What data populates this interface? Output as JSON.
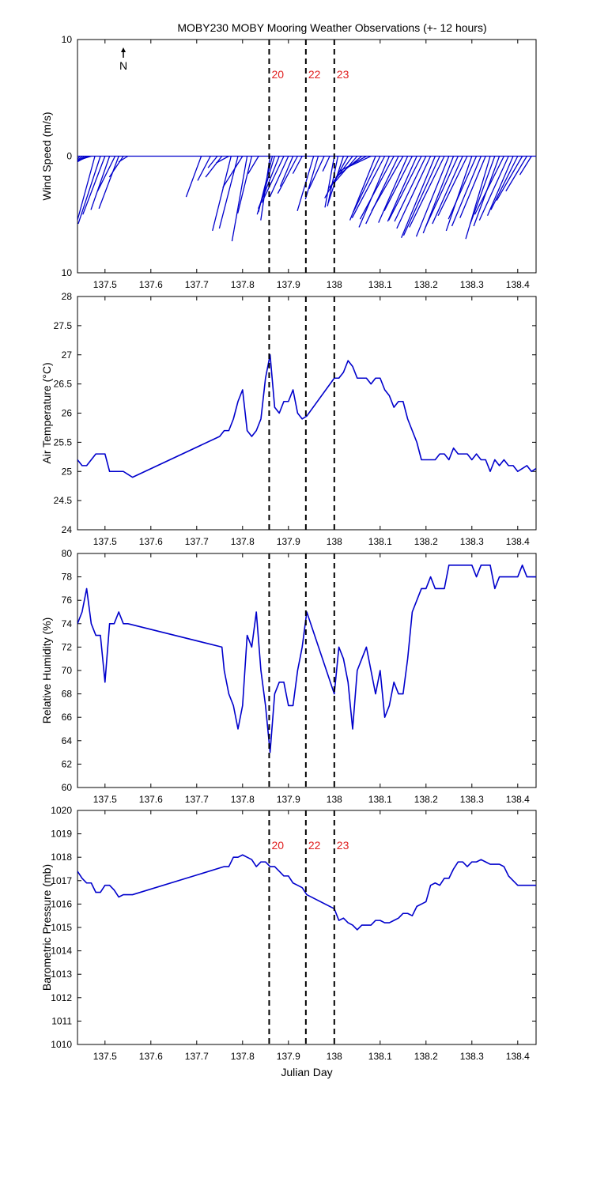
{
  "title": "MOBY230 MOBY Mooring Weather Observations (+- 12 hours)",
  "colors": {
    "line": "#0000cc",
    "marker": "#e02020",
    "axis": "#000000"
  },
  "x_ticks": [
    137.5,
    137.6,
    137.7,
    137.8,
    137.9,
    138,
    138.1,
    138.2,
    138.3,
    138.4
  ],
  "x_tick_labels": [
    "137.5",
    "137.6",
    "137.7",
    "137.8",
    "137.9",
    "138",
    "138.1",
    "138.2",
    "138.3",
    "138.4"
  ],
  "xlim": [
    137.44,
    138.44
  ],
  "markers": [
    {
      "x": 137.858,
      "label": "20"
    },
    {
      "x": 137.938,
      "label": "22"
    },
    {
      "x": 138.0,
      "label": "23"
    }
  ],
  "chart_data": [
    {
      "type": "line",
      "subtype": "wind-stick",
      "ylabel": "Wind Speed (m/s)",
      "ylim": [
        -10,
        10
      ],
      "y_ticks": [
        10,
        0,
        -10
      ],
      "y_tick_labels": [
        "10",
        "0",
        "10"
      ],
      "north_arrow_label": "N",
      "show_markers_labels": true,
      "sticks": [
        {
          "x": 137.445,
          "u": 2.3,
          "v": -3.3
        },
        {
          "x": 137.45,
          "u": 2.6,
          "v": -2.6
        },
        {
          "x": 137.455,
          "u": 2.5,
          "v": -2.0
        },
        {
          "x": 137.46,
          "u": 2.4,
          "v": -1.5
        },
        {
          "x": 137.465,
          "u": 2.2,
          "v": -1.0
        },
        {
          "x": 137.47,
          "u": 1.9,
          "v": -0.6
        },
        {
          "x": 137.478,
          "u": 1.5,
          "v": -5.5
        },
        {
          "x": 137.49,
          "u": 1.9,
          "v": -5.8
        },
        {
          "x": 137.5,
          "u": 1.9,
          "v": -5.0
        },
        {
          "x": 137.51,
          "u": 1.6,
          "v": -4.6
        },
        {
          "x": 137.522,
          "u": 1.5,
          "v": -3.0
        },
        {
          "x": 137.53,
          "u": 1.7,
          "v": -4.5
        },
        {
          "x": 137.54,
          "u": 1.2,
          "v": -1.8
        },
        {
          "x": 137.55,
          "u": 0.8,
          "v": -0.5
        },
        {
          "x": 137.71,
          "u": 1.3,
          "v": -3.5
        },
        {
          "x": 137.73,
          "u": 1.1,
          "v": -2.1
        },
        {
          "x": 137.745,
          "u": 0.8,
          "v": -1.0
        },
        {
          "x": 137.755,
          "u": 1.4,
          "v": -1.8
        },
        {
          "x": 137.77,
          "u": 1.1,
          "v": -0.6
        },
        {
          "x": 137.775,
          "u": 1.6,
          "v": -6.4
        },
        {
          "x": 137.79,
          "u": 1.6,
          "v": -6.2
        },
        {
          "x": 137.8,
          "u": 1.7,
          "v": -2.7
        },
        {
          "x": 137.81,
          "u": 1.3,
          "v": -7.3
        },
        {
          "x": 137.82,
          "u": 1.2,
          "v": -4.9
        },
        {
          "x": 137.835,
          "u": 0.9,
          "v": -1.5
        },
        {
          "x": 137.86,
          "u": 0.8,
          "v": -5.5
        },
        {
          "x": 137.865,
          "u": 1.2,
          "v": -4.8
        },
        {
          "x": 137.87,
          "u": 1.5,
          "v": -5.0
        },
        {
          "x": 137.88,
          "u": 1.8,
          "v": -4.5
        },
        {
          "x": 137.89,
          "u": 1.9,
          "v": -4.0
        },
        {
          "x": 137.9,
          "u": 1.6,
          "v": -3.5
        },
        {
          "x": 137.91,
          "u": 1.1,
          "v": -2.6
        },
        {
          "x": 137.92,
          "u": 1.7,
          "v": -3.2
        },
        {
          "x": 137.93,
          "u": 0.8,
          "v": -1.5
        },
        {
          "x": 137.955,
          "u": 1.4,
          "v": -4.7
        },
        {
          "x": 137.965,
          "u": 1.1,
          "v": -3.7
        },
        {
          "x": 137.978,
          "u": 1.3,
          "v": -2.8
        },
        {
          "x": 137.99,
          "u": 0.6,
          "v": -1.3
        },
        {
          "x": 138.0,
          "u": 0.8,
          "v": -4.4
        },
        {
          "x": 138.008,
          "u": 0.9,
          "v": -4.3
        },
        {
          "x": 138.02,
          "u": 1.3,
          "v": -4.0
        },
        {
          "x": 138.03,
          "u": 2.0,
          "v": -3.6
        },
        {
          "x": 138.04,
          "u": 2.0,
          "v": -2.7
        },
        {
          "x": 138.05,
          "u": 1.9,
          "v": -2.2
        },
        {
          "x": 138.06,
          "u": 2.2,
          "v": -1.8
        },
        {
          "x": 138.07,
          "u": 2.3,
          "v": -1.3
        },
        {
          "x": 138.08,
          "u": 1.9,
          "v": -0.9
        },
        {
          "x": 138.09,
          "u": 2.2,
          "v": -5.5
        },
        {
          "x": 138.1,
          "u": 2.3,
          "v": -4.8
        },
        {
          "x": 138.11,
          "u": 2.8,
          "v": -5.3
        },
        {
          "x": 138.12,
          "u": 2.6,
          "v": -6.1
        },
        {
          "x": 138.13,
          "u": 2.9,
          "v": -5.4
        },
        {
          "x": 138.14,
          "u": 2.8,
          "v": -5.8
        },
        {
          "x": 138.15,
          "u": 2.7,
          "v": -4.7
        },
        {
          "x": 138.16,
          "u": 2.5,
          "v": -5.7
        },
        {
          "x": 138.17,
          "u": 2.4,
          "v": -4.7
        },
        {
          "x": 138.18,
          "u": 2.5,
          "v": -5.6
        },
        {
          "x": 138.19,
          "u": 2.8,
          "v": -5.5
        },
        {
          "x": 138.2,
          "u": 2.7,
          "v": -5.6
        },
        {
          "x": 138.21,
          "u": 2.9,
          "v": -6.2
        },
        {
          "x": 138.22,
          "u": 2.9,
          "v": -7.0
        },
        {
          "x": 138.23,
          "u": 3.1,
          "v": -6.8
        },
        {
          "x": 138.24,
          "u": 3.0,
          "v": -6.1
        },
        {
          "x": 138.25,
          "u": 2.8,
          "v": -6.9
        },
        {
          "x": 138.26,
          "u": 2.6,
          "v": -6.6
        },
        {
          "x": 138.27,
          "u": 2.8,
          "v": -6.1
        },
        {
          "x": 138.28,
          "u": 2.6,
          "v": -5.8
        },
        {
          "x": 138.29,
          "u": 2.5,
          "v": -5.1
        },
        {
          "x": 138.3,
          "u": 2.2,
          "v": -6.4
        },
        {
          "x": 138.31,
          "u": 2.4,
          "v": -5.4
        },
        {
          "x": 138.32,
          "u": 2.5,
          "v": -6.0
        },
        {
          "x": 138.33,
          "u": 2.2,
          "v": -5.3
        },
        {
          "x": 138.34,
          "u": 2.1,
          "v": -7.1
        },
        {
          "x": 138.35,
          "u": 2.1,
          "v": -5.8
        },
        {
          "x": 138.36,
          "u": 2.2,
          "v": -6.0
        },
        {
          "x": 138.37,
          "u": 2.5,
          "v": -5.0
        },
        {
          "x": 138.38,
          "u": 2.5,
          "v": -5.5
        },
        {
          "x": 138.39,
          "u": 2.2,
          "v": -5.1
        },
        {
          "x": 138.4,
          "u": 2.3,
          "v": -4.6
        },
        {
          "x": 138.41,
          "u": 2.2,
          "v": -3.8
        },
        {
          "x": 138.42,
          "u": 1.8,
          "v": -3.0
        },
        {
          "x": 138.43,
          "u": 1.0,
          "v": -1.6
        }
      ]
    },
    {
      "type": "line",
      "ylabel": "Air Temperature (°C)",
      "ylim": [
        24,
        28
      ],
      "y_ticks": [
        24,
        24.5,
        25,
        25.5,
        26,
        26.5,
        27,
        27.5,
        28
      ],
      "y_tick_labels": [
        "24",
        "24.5",
        "25",
        "25.5",
        "26",
        "26.5",
        "27",
        "27.5",
        "28"
      ],
      "show_markers_labels": false,
      "x": [
        137.44,
        137.45,
        137.46,
        137.47,
        137.48,
        137.49,
        137.5,
        137.51,
        137.52,
        137.53,
        137.54,
        137.55,
        137.56,
        137.75,
        137.76,
        137.77,
        137.78,
        137.79,
        137.8,
        137.81,
        137.82,
        137.83,
        137.84,
        137.85,
        137.86,
        137.87,
        137.88,
        137.89,
        137.9,
        137.91,
        137.92,
        137.93,
        137.94,
        138.0,
        138.01,
        138.02,
        138.03,
        138.04,
        138.05,
        138.06,
        138.07,
        138.08,
        138.09,
        138.1,
        138.11,
        138.12,
        138.13,
        138.14,
        138.15,
        138.16,
        138.17,
        138.18,
        138.19,
        138.2,
        138.21,
        138.22,
        138.23,
        138.24,
        138.25,
        138.26,
        138.27,
        138.28,
        138.29,
        138.3,
        138.31,
        138.32,
        138.33,
        138.34,
        138.35,
        138.36,
        138.37,
        138.38,
        138.39,
        138.4,
        138.41,
        138.42,
        138.43,
        138.44
      ],
      "y": [
        25.2,
        25.1,
        25.1,
        25.2,
        25.3,
        25.3,
        25.3,
        25.0,
        25.0,
        25.0,
        25.0,
        24.95,
        24.9,
        25.6,
        25.7,
        25.7,
        25.9,
        26.2,
        26.4,
        25.7,
        25.6,
        25.7,
        25.9,
        26.6,
        27.0,
        26.1,
        26.0,
        26.2,
        26.2,
        26.4,
        26.0,
        25.9,
        25.95,
        26.6,
        26.6,
        26.7,
        26.9,
        26.8,
        26.6,
        26.6,
        26.6,
        26.5,
        26.6,
        26.6,
        26.4,
        26.3,
        26.1,
        26.2,
        26.2,
        25.9,
        25.7,
        25.5,
        25.2,
        25.2,
        25.2,
        25.2,
        25.3,
        25.3,
        25.2,
        25.4,
        25.3,
        25.3,
        25.3,
        25.2,
        25.3,
        25.2,
        25.2,
        25.0,
        25.2,
        25.1,
        25.2,
        25.1,
        25.1,
        25.0,
        25.05,
        25.1,
        25.0,
        25.05
      ]
    },
    {
      "type": "line",
      "ylabel": "Relative Humidity (%)",
      "ylim": [
        60,
        80
      ],
      "y_ticks": [
        60,
        62,
        64,
        66,
        68,
        70,
        72,
        74,
        76,
        78,
        80
      ],
      "y_tick_labels": [
        "60",
        "62",
        "64",
        "66",
        "68",
        "70",
        "72",
        "74",
        "76",
        "78",
        "80"
      ],
      "show_markers_labels": false,
      "x": [
        137.44,
        137.45,
        137.46,
        137.47,
        137.48,
        137.49,
        137.5,
        137.51,
        137.52,
        137.53,
        137.54,
        137.55,
        137.755,
        137.76,
        137.77,
        137.78,
        137.79,
        137.8,
        137.81,
        137.82,
        137.83,
        137.84,
        137.85,
        137.86,
        137.87,
        137.88,
        137.89,
        137.9,
        137.91,
        137.92,
        137.93,
        137.94,
        138.0,
        138.01,
        138.02,
        138.03,
        138.04,
        138.05,
        138.06,
        138.07,
        138.08,
        138.09,
        138.1,
        138.11,
        138.12,
        138.13,
        138.14,
        138.15,
        138.16,
        138.17,
        138.18,
        138.19,
        138.2,
        138.21,
        138.22,
        138.23,
        138.24,
        138.25,
        138.26,
        138.27,
        138.28,
        138.29,
        138.3,
        138.31,
        138.32,
        138.33,
        138.34,
        138.35,
        138.36,
        138.37,
        138.38,
        138.39,
        138.4,
        138.41,
        138.42,
        138.43,
        138.44
      ],
      "y": [
        74,
        75,
        77,
        74,
        73,
        73,
        69,
        74,
        74,
        75,
        74,
        74,
        72,
        70,
        68,
        67,
        65,
        67,
        73,
        72,
        75,
        70,
        67,
        63,
        68,
        69,
        69,
        67,
        67,
        70,
        72,
        75,
        68,
        72,
        71,
        69,
        65,
        70,
        71,
        72,
        70,
        68,
        70,
        66,
        67,
        69,
        68,
        68,
        71,
        75,
        76,
        77,
        77,
        78,
        77,
        77,
        77,
        79,
        79,
        79,
        79,
        79,
        79,
        78,
        79,
        79,
        79,
        77,
        78,
        78,
        78,
        78,
        78,
        79,
        78,
        78,
        78
      ]
    },
    {
      "type": "line",
      "ylabel": "Barometric Pressure (mb)",
      "ylim": [
        1010,
        1020
      ],
      "y_ticks": [
        1010,
        1011,
        1012,
        1013,
        1014,
        1015,
        1016,
        1017,
        1018,
        1019,
        1020
      ],
      "y_tick_labels": [
        "1010",
        "1011",
        "1012",
        "1013",
        "1014",
        "1015",
        "1016",
        "1017",
        "1018",
        "1019",
        "1020"
      ],
      "show_markers_labels": true,
      "x": [
        137.44,
        137.45,
        137.46,
        137.47,
        137.48,
        137.49,
        137.5,
        137.51,
        137.52,
        137.53,
        137.54,
        137.55,
        137.56,
        137.76,
        137.77,
        137.78,
        137.79,
        137.8,
        137.81,
        137.82,
        137.83,
        137.84,
        137.85,
        137.86,
        137.87,
        137.88,
        137.89,
        137.9,
        137.91,
        137.92,
        137.93,
        137.94,
        138.0,
        138.01,
        138.02,
        138.03,
        138.04,
        138.05,
        138.06,
        138.07,
        138.08,
        138.09,
        138.1,
        138.11,
        138.12,
        138.13,
        138.14,
        138.15,
        138.16,
        138.17,
        138.18,
        138.19,
        138.2,
        138.21,
        138.22,
        138.23,
        138.24,
        138.25,
        138.26,
        138.27,
        138.28,
        138.29,
        138.3,
        138.31,
        138.32,
        138.33,
        138.34,
        138.35,
        138.36,
        138.37,
        138.38,
        138.39,
        138.4,
        138.41,
        138.42,
        138.43,
        138.44
      ],
      "y": [
        1017.4,
        1017.1,
        1016.9,
        1016.9,
        1016.5,
        1016.5,
        1016.8,
        1016.8,
        1016.6,
        1016.3,
        1016.4,
        1016.4,
        1016.4,
        1017.6,
        1017.6,
        1018.0,
        1018.0,
        1018.1,
        1018.0,
        1017.9,
        1017.6,
        1017.8,
        1017.8,
        1017.6,
        1017.6,
        1017.4,
        1017.2,
        1017.2,
        1016.9,
        1016.8,
        1016.7,
        1016.4,
        1015.8,
        1015.3,
        1015.4,
        1015.2,
        1015.1,
        1014.9,
        1015.1,
        1015.1,
        1015.1,
        1015.3,
        1015.3,
        1015.2,
        1015.2,
        1015.3,
        1015.4,
        1015.6,
        1015.6,
        1015.5,
        1015.9,
        1016.0,
        1016.1,
        1016.8,
        1016.9,
        1016.8,
        1017.1,
        1017.1,
        1017.5,
        1017.8,
        1017.8,
        1017.6,
        1017.8,
        1017.8,
        1017.9,
        1017.8,
        1017.7,
        1017.7,
        1017.7,
        1017.6,
        1017.2,
        1017.0,
        1016.8,
        1016.8,
        1016.8,
        1016.8,
        1016.8
      ]
    }
  ],
  "xlabel_panels": [
    "",
    "",
    "",
    "Julian Day"
  ]
}
